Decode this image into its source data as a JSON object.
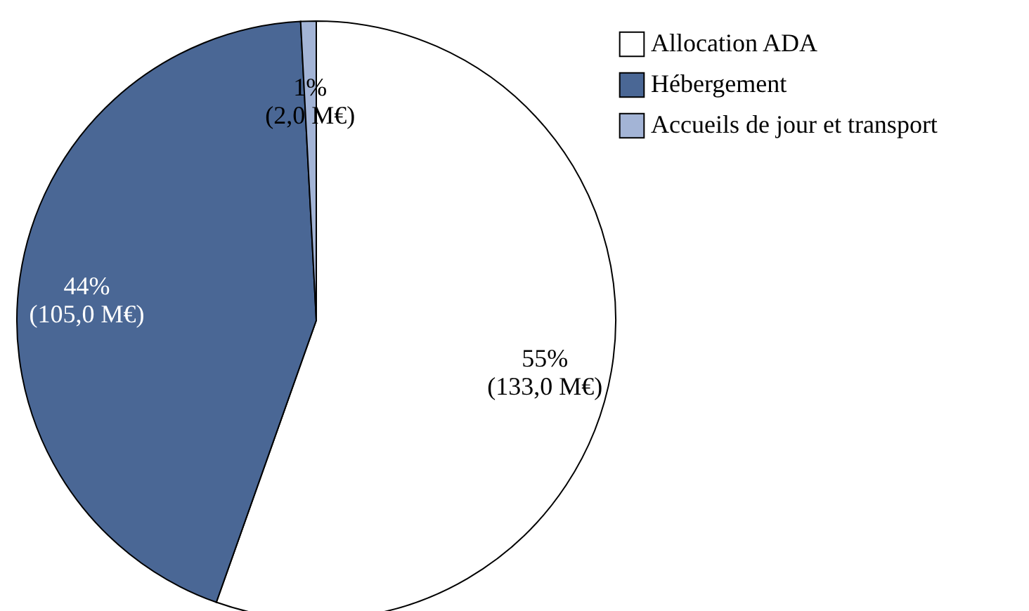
{
  "chart_data": {
    "type": "pie",
    "categories": [
      "Allocation ADA",
      "Hébergement",
      "Accueils de jour et transport"
    ],
    "values": [
      133.0,
      105.0,
      2.0
    ],
    "colors": [
      "#ffffff",
      "#4a6795",
      "#a3b4d6"
    ],
    "value_labels": [
      "55%\n(133,0 M€)",
      "44%\n(105,0 M€)",
      "1%\n(2,0 M€)"
    ],
    "legend": "top right"
  }
}
